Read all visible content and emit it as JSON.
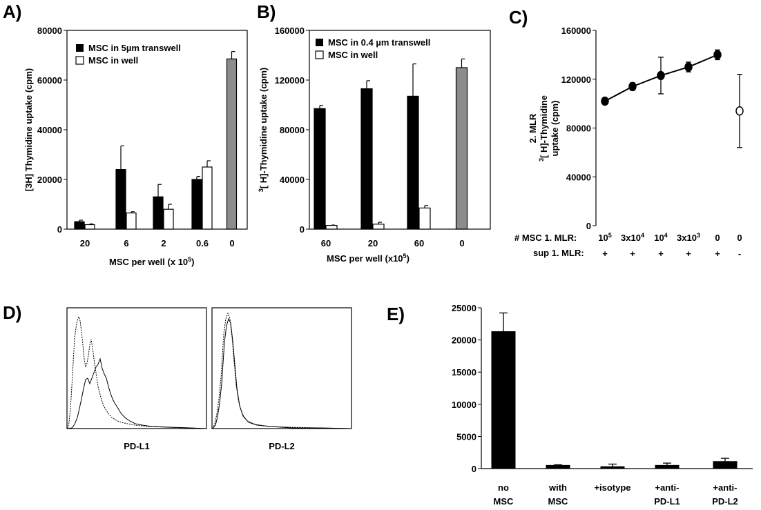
{
  "panels": {
    "a": "A)",
    "b": "B)",
    "c": "C)",
    "d": "D)",
    "e": "E)"
  },
  "colors": {
    "black": "#000000",
    "gray": "#8c8c8c",
    "white": "#ffffff"
  },
  "chart_data": [
    {
      "id": "A",
      "type": "bar",
      "categories": [
        "20",
        "6",
        "2",
        "0.6",
        "0"
      ],
      "ylim": [
        0,
        80000
      ],
      "yticks": [
        "0",
        "20000",
        "40000",
        "60000",
        "80000"
      ],
      "ylabel": "[3H] Thymidine uptake (cpm)",
      "xlabel_main": "MSC per well (x 10",
      "xlabel_sup": "5",
      "xlabel_end": ")",
      "legend_placement": "top-left",
      "series": [
        {
          "name": "MSC in 5µm transwell",
          "fill": "black",
          "values": [
            3000,
            24000,
            13000,
            20000,
            null
          ],
          "errors": [
            600,
            9500,
            5000,
            1200,
            null
          ]
        },
        {
          "name": "MSC in well",
          "fill": "white",
          "values": [
            1800,
            6500,
            8000,
            25000,
            null
          ],
          "errors": [
            300,
            500,
            2000,
            2500,
            null
          ]
        },
        {
          "name": "",
          "fill": "gray",
          "values": [
            null,
            null,
            null,
            null,
            68500
          ],
          "errors": [
            null,
            null,
            null,
            null,
            3000
          ]
        }
      ]
    },
    {
      "id": "B",
      "type": "bar",
      "categories": [
        "60",
        "20",
        "60",
        "0"
      ],
      "ylim": [
        0,
        160000
      ],
      "yticks": [
        "0",
        "40000",
        "80000",
        "120000",
        "160000"
      ],
      "ylabel_sup": "3",
      "ylabel": "[ H]-Thymidine uptake (cpm)",
      "xlabel_main": "MSC per well (x10",
      "xlabel_sup": "5",
      "xlabel_end": ")",
      "legend_placement": "top-left",
      "series": [
        {
          "name": "MSC in 0.4 µm transwell",
          "fill": "black",
          "values": [
            97000,
            113000,
            107000,
            null
          ],
          "errors": [
            2500,
            6500,
            26000,
            null
          ]
        },
        {
          "name": "MSC in well",
          "fill": "white",
          "values": [
            3000,
            4000,
            17000,
            null
          ],
          "errors": [
            300,
            1500,
            2000,
            null
          ]
        },
        {
          "name": "",
          "fill": "gray",
          "values": [
            null,
            null,
            null,
            130000
          ],
          "errors": [
            null,
            null,
            null,
            7000
          ]
        }
      ]
    },
    {
      "id": "C",
      "type": "scatter",
      "ylim": [
        0,
        160000
      ],
      "yticks": [
        "0",
        "40000",
        "80000",
        "120000",
        "160000"
      ],
      "ylabel_line1": "2. MLR",
      "ylabel_line2": "[ H]-Thymidine",
      "ylabel_line2_sup": "3",
      "ylabel_line3": "uptake (cpm)",
      "row1_label": "# MSC 1. MLR:",
      "row2_label": "sup 1. MLR:",
      "categories": [
        {
          "base": "10",
          "sup": "5"
        },
        {
          "base": "3x10",
          "sup": "4"
        },
        {
          "base": "10",
          "sup": "4"
        },
        {
          "base": "3x10",
          "sup": "3"
        },
        {
          "base": "0",
          "sup": ""
        },
        {
          "base": "0",
          "sup": ""
        }
      ],
      "sup": [
        "+",
        "+",
        "+",
        "+",
        "+",
        "-"
      ],
      "values": [
        102000,
        114000,
        123000,
        130000,
        140000,
        94000
      ],
      "errors": [
        2500,
        3000,
        15000,
        4000,
        4000,
        30000
      ],
      "filled": [
        true,
        true,
        true,
        true,
        true,
        false
      ],
      "connected_count": 5
    },
    {
      "id": "D",
      "type": "histogram",
      "panels": [
        "PD-L1",
        "PD-L2"
      ]
    },
    {
      "id": "E",
      "type": "bar",
      "ylim": [
        0,
        25000
      ],
      "yticks": [
        "0",
        "5000",
        "10000",
        "15000",
        "20000",
        "25000"
      ],
      "categories": [
        {
          "l1": "no",
          "l2": "MSC"
        },
        {
          "l1": "with",
          "l2": "MSC"
        },
        {
          "l1": "+isotype",
          "l2": ""
        },
        {
          "l1": "+anti-",
          "l2": "PD-L1"
        },
        {
          "l1": "+anti-",
          "l2": "PD-L2"
        }
      ],
      "values": [
        21300,
        500,
        300,
        500,
        1100
      ],
      "errors": [
        2900,
        100,
        400,
        350,
        500
      ]
    }
  ]
}
